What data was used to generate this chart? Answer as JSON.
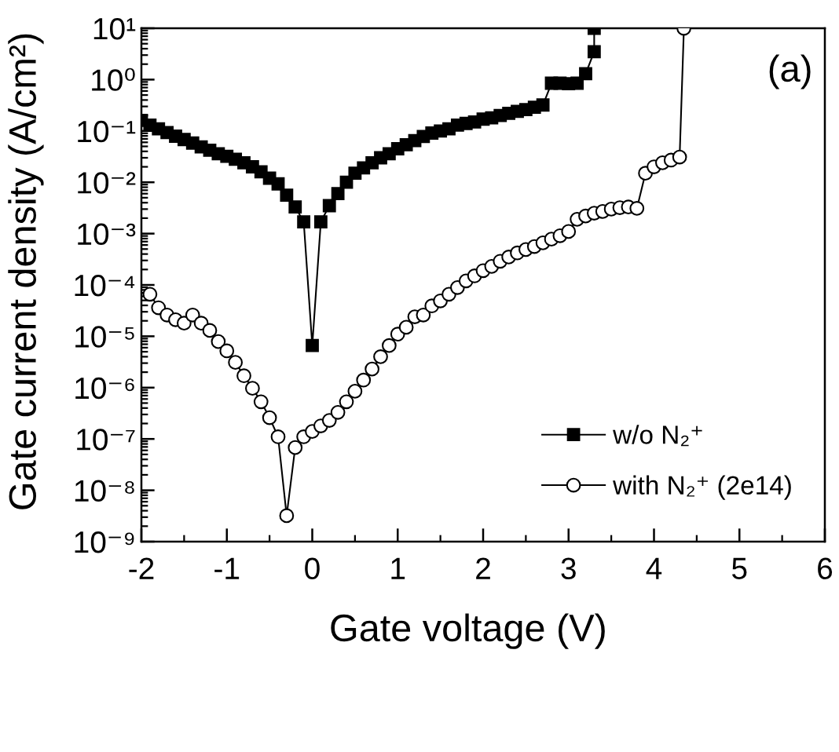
{
  "chart_data": {
    "type": "line",
    "xlabel": "Gate voltage (V)",
    "ylabel": "Gate current density (A/cm²)",
    "log": "y",
    "xlim": [
      -2,
      6
    ],
    "xticks": [
      -2,
      -1,
      0,
      1,
      2,
      3,
      4,
      5,
      6
    ],
    "ylim": [
      1e-09,
      10
    ],
    "yticks": [
      {
        "value": 1e-09,
        "label": "10⁻⁹"
      },
      {
        "value": 1e-08,
        "label": "10⁻⁸"
      },
      {
        "value": 1e-07,
        "label": "10⁻⁷"
      },
      {
        "value": 1e-06,
        "label": "10⁻⁶"
      },
      {
        "value": 1e-05,
        "label": "10⁻⁵"
      },
      {
        "value": 0.0001,
        "label": "10⁻⁴"
      },
      {
        "value": 0.001,
        "label": "10⁻³"
      },
      {
        "value": 0.01,
        "label": "10⁻²"
      },
      {
        "value": 0.1,
        "label": "10⁻¹"
      },
      {
        "value": 1,
        "label": "10⁰"
      },
      {
        "value": 10,
        "label": "10¹"
      }
    ],
    "legend": "bottom right",
    "annotations": [
      "(a)"
    ],
    "series": [
      {
        "name": "w/o N₂⁺",
        "color": "#000000",
        "marker": "square",
        "x": [
          -2,
          -1.9,
          -1.8,
          -1.7,
          -1.6,
          -1.5,
          -1.4,
          -1.3,
          -1.2,
          -1.1,
          -1,
          -0.9,
          -0.8,
          -0.7,
          -0.6,
          -0.5,
          -0.4,
          -0.3,
          -0.2,
          -0.1,
          0,
          0.1,
          0.2,
          0.3,
          0.4,
          0.5,
          0.6,
          0.7,
          0.8,
          0.9,
          1,
          1.1,
          1.2,
          1.3,
          1.4,
          1.5,
          1.6,
          1.7,
          1.8,
          1.9,
          2,
          2.1,
          2.2,
          2.3,
          2.4,
          2.5,
          2.6,
          2.7,
          2.8,
          2.9,
          3,
          3.1,
          3.2,
          3.3,
          3.3
        ],
        "values": [
          0.16,
          0.13,
          0.11,
          0.093,
          0.079,
          0.068,
          0.058,
          0.049,
          0.042,
          0.036,
          0.032,
          0.028,
          0.024,
          0.02,
          0.016,
          0.012,
          0.0093,
          0.0056,
          0.0033,
          0.0017,
          6.6e-06,
          0.0017,
          0.0035,
          0.006,
          0.01,
          0.015,
          0.019,
          0.024,
          0.03,
          0.036,
          0.045,
          0.054,
          0.065,
          0.078,
          0.091,
          0.1,
          0.11,
          0.13,
          0.14,
          0.15,
          0.17,
          0.18,
          0.2,
          0.22,
          0.24,
          0.26,
          0.29,
          0.32,
          0.85,
          0.85,
          0.83,
          0.85,
          1.3,
          3.5,
          10
        ]
      },
      {
        "name": "with N₂⁺ (2e14)",
        "color": "#000000",
        "marker": "circle",
        "x": [
          -1.9,
          -1.8,
          -1.7,
          -1.6,
          -1.5,
          -1.4,
          -1.3,
          -1.2,
          -1.1,
          -1,
          -0.9,
          -0.8,
          -0.7,
          -0.6,
          -0.5,
          -0.4,
          -0.3,
          -0.2,
          -0.1,
          0,
          0.1,
          0.2,
          0.3,
          0.4,
          0.5,
          0.6,
          0.7,
          0.8,
          0.9,
          1,
          1.1,
          1.2,
          1.3,
          1.4,
          1.5,
          1.6,
          1.7,
          1.8,
          1.9,
          2,
          2.1,
          2.2,
          2.3,
          2.4,
          2.5,
          2.6,
          2.7,
          2.8,
          2.9,
          3,
          3.1,
          3.2,
          3.3,
          3.4,
          3.5,
          3.6,
          3.7,
          3.8,
          3.9,
          4,
          4.1,
          4.2,
          4.3,
          4.35
        ],
        "values": [
          6.6e-05,
          3.6e-05,
          2.6e-05,
          2.1e-05,
          1.8e-05,
          2.6e-05,
          1.8e-05,
          1.3e-05,
          7.9e-06,
          5.2e-06,
          3.1e-06,
          1.7e-06,
          9.7e-07,
          5.3e-07,
          2.6e-07,
          1.1e-07,
          3.2e-09,
          6.8e-08,
          1.1e-07,
          1.4e-07,
          1.8e-07,
          2.3e-07,
          3.3e-07,
          5.3e-07,
          8.5e-07,
          1.4e-06,
          2.3e-06,
          4e-06,
          6.6e-06,
          1.1e-05,
          1.5e-05,
          2.4e-05,
          2.6e-05,
          3.9e-05,
          4.9e-05,
          6.6e-05,
          8.9e-05,
          0.00012,
          0.00015,
          0.00019,
          0.00023,
          0.00029,
          0.00035,
          0.00042,
          0.00049,
          0.00056,
          0.00066,
          0.00078,
          0.00091,
          0.0011,
          0.0019,
          0.0022,
          0.0025,
          0.0027,
          0.003,
          0.0032,
          0.0033,
          0.0031,
          0.015,
          0.02,
          0.024,
          0.027,
          0.031,
          10
        ]
      }
    ]
  }
}
